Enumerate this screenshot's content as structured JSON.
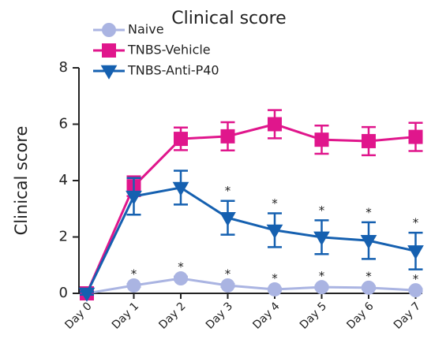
{
  "chart_data": {
    "type": "line",
    "title": "Clinical score",
    "ylabel": "Clinical score",
    "categories": [
      "Day 0",
      "Day 1",
      "Day 2",
      "Day 3",
      "Day 4",
      "Day 5",
      "Day 6",
      "Day 7"
    ],
    "ylim": [
      0,
      8
    ],
    "yticks": [
      0,
      2,
      4,
      6,
      8
    ],
    "legend": "top-left",
    "series": [
      {
        "name": "Naive",
        "color": "#aab4e2",
        "marker": "circle",
        "values": [
          0,
          0.28,
          0.53,
          0.28,
          0.14,
          0.22,
          0.2,
          0.11
        ],
        "errors": [
          0.03,
          0.05,
          0.06,
          0.05,
          0.04,
          0.05,
          0.05,
          0.04
        ],
        "annotations": [
          {
            "category": "Day 1",
            "text": "*"
          },
          {
            "category": "Day 2",
            "text": "*"
          },
          {
            "category": "Day 3",
            "text": "*"
          },
          {
            "category": "Day 4",
            "text": "*"
          },
          {
            "category": "Day 5",
            "text": "*"
          },
          {
            "category": "Day 6",
            "text": "*"
          },
          {
            "category": "Day 7",
            "text": "*"
          }
        ]
      },
      {
        "name": "TNBS-Vehicle",
        "color": "#e0168c",
        "marker": "square",
        "values": [
          0,
          3.8,
          5.48,
          5.57,
          6.0,
          5.45,
          5.4,
          5.55
        ],
        "errors": [
          0.05,
          0.35,
          0.4,
          0.5,
          0.5,
          0.5,
          0.5,
          0.5
        ]
      },
      {
        "name": "TNBS-Anti-P40",
        "color": "#1560b0",
        "marker": "triangle-down",
        "values": [
          0,
          3.44,
          3.75,
          2.68,
          2.24,
          1.99,
          1.87,
          1.5
        ],
        "errors": [
          0.05,
          0.65,
          0.6,
          0.6,
          0.6,
          0.6,
          0.65,
          0.65
        ],
        "annotations": [
          {
            "category": "Day 3",
            "text": "*"
          },
          {
            "category": "Day 4",
            "text": "*"
          },
          {
            "category": "Day 5",
            "text": "*"
          },
          {
            "category": "Day 6",
            "text": "*"
          },
          {
            "category": "Day 7",
            "text": "*"
          }
        ]
      }
    ]
  }
}
